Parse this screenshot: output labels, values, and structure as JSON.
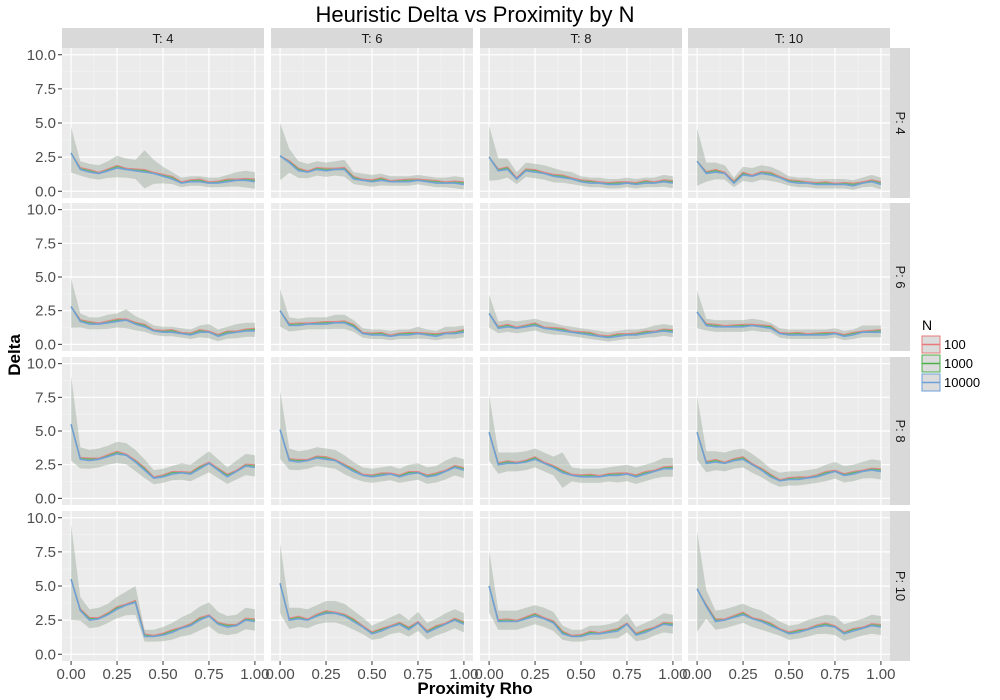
{
  "chart_data": {
    "type": "line",
    "title": "Heuristic Delta vs Proximity by N",
    "xlabel": "Proximity Rho",
    "ylabel": "Delta",
    "xlim": [
      0,
      1
    ],
    "ylim": [
      0,
      10
    ],
    "x_ticks": [
      "0.00",
      "0.25",
      "0.50",
      "0.75",
      "1.00"
    ],
    "y_ticks": [
      "0.0",
      "2.5",
      "5.0",
      "7.5",
      "10.0"
    ],
    "col_facet_labels": [
      "T: 4",
      "T: 6",
      "T: 8",
      "T: 10"
    ],
    "row_facet_labels": [
      "P: 4",
      "P: 6",
      "P: 8",
      "P: 10"
    ],
    "legend": {
      "title": "N",
      "position": "right",
      "entries": [
        "100",
        "1000",
        "10000"
      ],
      "colors": [
        "#e8787a",
        "#4daf4a",
        "#6e9fd9"
      ]
    },
    "grid": true,
    "x": [
      0,
      0.05,
      0.1,
      0.15,
      0.2,
      0.25,
      0.3,
      0.35,
      0.4,
      0.45,
      0.5,
      0.55,
      0.6,
      0.65,
      0.7,
      0.75,
      0.8,
      0.85,
      0.9,
      0.95,
      1.0
    ],
    "panels": [
      {
        "row": 0,
        "col": 0,
        "values": [
          2.8,
          1.6,
          1.4,
          1.3,
          1.5,
          1.7,
          1.6,
          1.5,
          1.4,
          1.3,
          1.1,
          0.9,
          0.6,
          0.7,
          0.7,
          0.6,
          0.6,
          0.7,
          0.8,
          0.8,
          0.7
        ],
        "band": [
          1.9,
          0.6,
          0.6,
          0.6,
          0.7,
          0.9,
          0.8,
          0.8,
          1.6,
          1.0,
          0.7,
          0.5,
          0.4,
          0.4,
          0.4,
          0.4,
          0.4,
          0.5,
          0.6,
          0.7,
          0.7
        ]
      },
      {
        "row": 0,
        "col": 1,
        "values": [
          2.6,
          2.1,
          1.5,
          1.4,
          1.6,
          1.5,
          1.6,
          1.6,
          0.9,
          0.8,
          0.7,
          0.8,
          0.7,
          0.7,
          0.7,
          0.8,
          0.7,
          0.6,
          0.6,
          0.6,
          0.5
        ],
        "band": [
          2.4,
          1.0,
          0.7,
          0.6,
          0.6,
          0.6,
          0.6,
          0.7,
          0.5,
          0.5,
          0.5,
          0.5,
          0.4,
          0.4,
          0.4,
          0.4,
          0.4,
          0.4,
          0.4,
          0.5,
          0.5
        ]
      },
      {
        "row": 0,
        "col": 2,
        "values": [
          2.5,
          1.5,
          1.6,
          0.9,
          1.5,
          1.4,
          1.3,
          1.1,
          1.0,
          0.9,
          0.7,
          0.6,
          0.6,
          0.5,
          0.5,
          0.6,
          0.5,
          0.6,
          0.6,
          0.7,
          0.6
        ],
        "band": [
          2.3,
          0.9,
          0.8,
          0.5,
          0.6,
          0.6,
          0.6,
          0.6,
          0.5,
          0.5,
          0.4,
          0.4,
          0.4,
          0.4,
          0.4,
          0.4,
          0.4,
          0.4,
          0.4,
          0.5,
          0.5
        ]
      },
      {
        "row": 0,
        "col": 3,
        "values": [
          2.2,
          1.3,
          1.4,
          1.3,
          0.6,
          1.2,
          1.1,
          1.3,
          1.2,
          1.0,
          0.7,
          0.6,
          0.6,
          0.5,
          0.5,
          0.5,
          0.5,
          0.4,
          0.6,
          0.7,
          0.5
        ],
        "band": [
          2.4,
          0.8,
          0.7,
          0.6,
          0.4,
          0.6,
          0.6,
          0.6,
          0.6,
          0.5,
          0.4,
          0.4,
          0.4,
          0.4,
          0.4,
          0.4,
          0.4,
          0.4,
          0.4,
          0.5,
          0.5
        ]
      },
      {
        "row": 1,
        "col": 0,
        "values": [
          2.8,
          1.7,
          1.5,
          1.5,
          1.6,
          1.7,
          1.8,
          1.5,
          1.3,
          1.0,
          0.9,
          0.9,
          0.8,
          0.7,
          0.9,
          0.9,
          0.6,
          0.8,
          0.9,
          1.0,
          1.0
        ],
        "band": [
          2.1,
          0.6,
          0.5,
          0.5,
          0.6,
          0.6,
          0.8,
          0.6,
          0.5,
          0.4,
          0.4,
          0.4,
          0.4,
          0.4,
          0.5,
          0.6,
          0.5,
          0.5,
          0.6,
          0.6,
          0.6
        ]
      },
      {
        "row": 1,
        "col": 1,
        "values": [
          2.5,
          1.4,
          1.4,
          1.5,
          1.5,
          1.5,
          1.6,
          1.6,
          1.3,
          0.8,
          0.7,
          0.7,
          0.6,
          0.7,
          0.7,
          0.8,
          0.7,
          0.6,
          0.8,
          0.8,
          0.9
        ],
        "band": [
          1.6,
          0.6,
          0.5,
          0.5,
          0.5,
          0.5,
          0.6,
          0.6,
          0.5,
          0.4,
          0.4,
          0.4,
          0.4,
          0.4,
          0.4,
          0.5,
          0.4,
          0.4,
          0.5,
          0.5,
          0.5
        ]
      },
      {
        "row": 1,
        "col": 2,
        "values": [
          2.3,
          1.2,
          1.3,
          1.2,
          1.3,
          1.4,
          1.2,
          1.1,
          1.0,
          0.9,
          0.8,
          0.7,
          0.6,
          0.5,
          0.6,
          0.7,
          0.7,
          0.8,
          0.9,
          1.0,
          0.9
        ],
        "band": [
          1.4,
          0.5,
          0.5,
          0.5,
          0.5,
          0.5,
          0.5,
          0.5,
          0.4,
          0.4,
          0.4,
          0.4,
          0.4,
          0.4,
          0.4,
          0.4,
          0.4,
          0.4,
          0.5,
          0.5,
          0.5
        ]
      },
      {
        "row": 1,
        "col": 3,
        "values": [
          2.4,
          1.4,
          1.3,
          1.3,
          1.3,
          1.3,
          1.4,
          1.3,
          1.2,
          0.8,
          0.7,
          0.7,
          0.7,
          0.7,
          0.7,
          0.8,
          0.6,
          0.7,
          0.9,
          0.9,
          0.9
        ],
        "band": [
          1.6,
          0.5,
          0.5,
          0.5,
          0.5,
          0.5,
          0.5,
          0.5,
          0.4,
          0.4,
          0.4,
          0.4,
          0.4,
          0.4,
          0.4,
          0.4,
          0.4,
          0.4,
          0.5,
          0.5,
          0.5
        ]
      },
      {
        "row": 2,
        "col": 0,
        "values": [
          5.5,
          2.9,
          2.8,
          2.9,
          3.1,
          3.3,
          3.2,
          2.7,
          2.1,
          1.5,
          1.6,
          1.8,
          1.9,
          1.8,
          2.2,
          2.6,
          2.1,
          1.6,
          2.0,
          2.4,
          2.3
        ],
        "band": [
          3.6,
          0.9,
          0.8,
          0.8,
          0.8,
          0.9,
          0.9,
          0.9,
          0.8,
          0.6,
          0.6,
          0.6,
          0.7,
          0.7,
          0.8,
          0.9,
          0.8,
          0.7,
          0.8,
          0.9,
          0.9
        ]
      },
      {
        "row": 2,
        "col": 1,
        "values": [
          5.1,
          2.8,
          2.7,
          2.8,
          3.0,
          2.9,
          2.8,
          2.4,
          2.0,
          1.7,
          1.6,
          1.7,
          1.8,
          1.6,
          1.8,
          1.9,
          1.6,
          1.7,
          2.0,
          2.3,
          2.1
        ],
        "band": [
          2.9,
          0.9,
          0.8,
          0.8,
          0.8,
          0.8,
          0.8,
          0.8,
          0.7,
          0.6,
          0.6,
          0.6,
          0.6,
          0.6,
          0.7,
          0.7,
          0.7,
          0.7,
          0.8,
          0.8,
          0.8
        ]
      },
      {
        "row": 2,
        "col": 2,
        "values": [
          4.9,
          2.5,
          2.6,
          2.6,
          2.7,
          2.9,
          2.6,
          2.3,
          1.9,
          1.7,
          1.6,
          1.6,
          1.6,
          1.7,
          1.7,
          1.8,
          1.6,
          1.8,
          2.0,
          2.2,
          2.2
        ],
        "band": [
          2.8,
          0.9,
          0.8,
          0.8,
          0.8,
          0.8,
          0.8,
          0.8,
          1.5,
          0.6,
          0.6,
          0.6,
          0.6,
          0.6,
          0.7,
          0.7,
          0.7,
          0.7,
          0.7,
          0.8,
          0.8
        ]
      },
      {
        "row": 2,
        "col": 3,
        "values": [
          4.9,
          2.6,
          2.7,
          2.6,
          2.8,
          2.9,
          2.5,
          2.1,
          1.6,
          1.3,
          1.4,
          1.4,
          1.5,
          1.6,
          1.8,
          2.0,
          1.7,
          1.8,
          2.0,
          2.1,
          2.0
        ],
        "band": [
          2.7,
          0.9,
          0.8,
          0.8,
          0.8,
          0.8,
          0.8,
          0.7,
          0.6,
          0.6,
          0.6,
          0.6,
          0.6,
          0.6,
          0.7,
          0.7,
          0.7,
          0.7,
          0.7,
          0.8,
          0.8
        ]
      },
      {
        "row": 3,
        "col": 0,
        "values": [
          5.5,
          3.2,
          2.5,
          2.6,
          2.9,
          3.3,
          3.6,
          3.8,
          1.3,
          1.3,
          1.4,
          1.6,
          1.9,
          2.1,
          2.5,
          2.8,
          2.2,
          2.0,
          2.1,
          2.5,
          2.4
        ],
        "band": [
          4.0,
          1.0,
          0.8,
          0.8,
          0.8,
          0.9,
          1.0,
          1.2,
          0.5,
          0.5,
          0.6,
          0.7,
          0.8,
          0.9,
          1.0,
          1.0,
          0.9,
          0.8,
          0.8,
          0.9,
          0.9
        ]
      },
      {
        "row": 3,
        "col": 1,
        "values": [
          5.2,
          2.5,
          2.6,
          2.5,
          2.8,
          3.0,
          3.0,
          2.8,
          2.4,
          2.0,
          1.5,
          1.7,
          2.0,
          2.2,
          1.8,
          2.3,
          1.6,
          1.9,
          2.2,
          2.5,
          2.2
        ],
        "band": [
          2.9,
          0.9,
          0.8,
          0.8,
          0.8,
          0.9,
          0.9,
          0.9,
          0.8,
          0.7,
          0.6,
          0.7,
          0.7,
          0.8,
          0.7,
          0.8,
          0.7,
          0.7,
          0.8,
          0.8,
          0.8
        ]
      },
      {
        "row": 3,
        "col": 2,
        "values": [
          5.0,
          2.4,
          2.4,
          2.4,
          2.6,
          2.8,
          2.6,
          2.3,
          1.5,
          1.3,
          1.3,
          1.5,
          1.5,
          1.6,
          1.7,
          2.2,
          1.4,
          1.6,
          1.9,
          2.2,
          2.1
        ],
        "band": [
          2.6,
          0.8,
          0.8,
          0.8,
          0.8,
          0.8,
          0.8,
          0.8,
          0.6,
          0.5,
          0.5,
          0.6,
          0.6,
          0.6,
          0.7,
          0.8,
          0.6,
          0.7,
          0.7,
          0.8,
          0.8
        ]
      },
      {
        "row": 3,
        "col": 3,
        "values": [
          4.8,
          3.5,
          2.4,
          2.5,
          2.7,
          2.9,
          2.6,
          2.4,
          2.1,
          1.8,
          1.5,
          1.6,
          1.8,
          2.0,
          2.1,
          2.0,
          1.5,
          1.7,
          1.9,
          2.1,
          2.0
        ],
        "band": [
          4.2,
          1.2,
          0.8,
          0.8,
          0.8,
          0.8,
          0.8,
          0.8,
          0.7,
          0.6,
          0.6,
          0.6,
          0.7,
          0.7,
          0.8,
          0.8,
          0.7,
          0.7,
          0.7,
          0.8,
          0.8
        ]
      }
    ]
  }
}
